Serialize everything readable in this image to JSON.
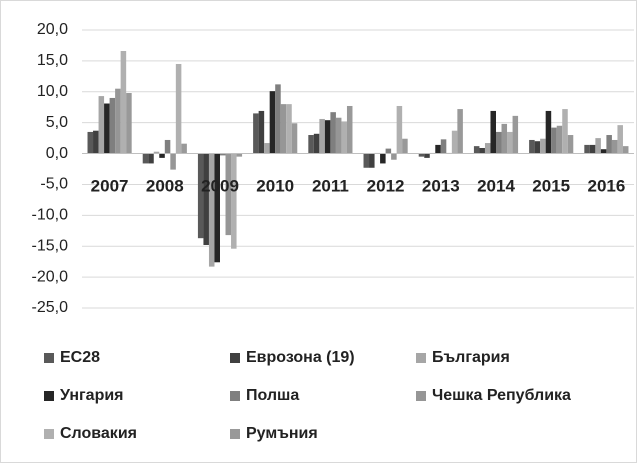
{
  "chart_data": {
    "type": "bar",
    "categories": [
      "2007",
      "2008",
      "2009",
      "2010",
      "2011",
      "2012",
      "2013",
      "2014",
      "2015",
      "2016"
    ],
    "series": [
      {
        "name": "ЕС28",
        "color": "#595959",
        "values": [
          3.5,
          -1.6,
          -13.7,
          6.5,
          3.0,
          -2.3,
          -0.5,
          1.2,
          2.2,
          1.4
        ]
      },
      {
        "name": "Еврозона (19)",
        "color": "#404040",
        "values": [
          3.7,
          -1.6,
          -14.8,
          6.9,
          3.2,
          -2.3,
          -0.7,
          0.9,
          2.0,
          1.4
        ]
      },
      {
        "name": "България",
        "color": "#a6a6a6",
        "values": [
          9.3,
          0.3,
          -18.3,
          1.7,
          5.6,
          0.1,
          0.1,
          1.7,
          2.4,
          2.5
        ]
      },
      {
        "name": "Унгария",
        "color": "#262626",
        "values": [
          8.1,
          -0.7,
          -17.6,
          10.1,
          5.4,
          -1.6,
          1.4,
          6.9,
          6.9,
          0.7
        ]
      },
      {
        "name": "Полша",
        "color": "#7f7f7f",
        "values": [
          9.0,
          2.2,
          -0.3,
          11.2,
          6.7,
          0.8,
          2.3,
          3.5,
          4.2,
          3.0
        ]
      },
      {
        "name": "Чешка Република",
        "color": "#969696",
        "values": [
          10.5,
          -2.6,
          -13.2,
          8.0,
          5.8,
          -1.0,
          0.1,
          4.8,
          4.5,
          2.2
        ]
      },
      {
        "name": "Словакия",
        "color": "#b0b0b0",
        "values": [
          16.6,
          14.5,
          -15.4,
          8.0,
          5.2,
          7.7,
          3.7,
          3.5,
          7.2,
          4.6
        ]
      },
      {
        "name": "Румъния",
        "color": "#999999",
        "values": [
          9.8,
          1.6,
          -0.5,
          4.9,
          7.7,
          2.4,
          7.2,
          6.1,
          3.0,
          1.2
        ]
      }
    ],
    "ylim": [
      -25,
      20
    ],
    "yticks": [
      {
        "value": -25,
        "label": "-25,0"
      },
      {
        "value": -20,
        "label": "-20,0"
      },
      {
        "value": -15,
        "label": "-15,0"
      },
      {
        "value": -10,
        "label": "-10,0"
      },
      {
        "value": -5,
        "label": "-5,0"
      },
      {
        "value": 0,
        "label": "0,0"
      },
      {
        "value": 5,
        "label": "5,0"
      },
      {
        "value": 10,
        "label": "10,0"
      },
      {
        "value": 15,
        "label": "15,0"
      },
      {
        "value": 20,
        "label": "20,0"
      }
    ],
    "grid": true
  }
}
